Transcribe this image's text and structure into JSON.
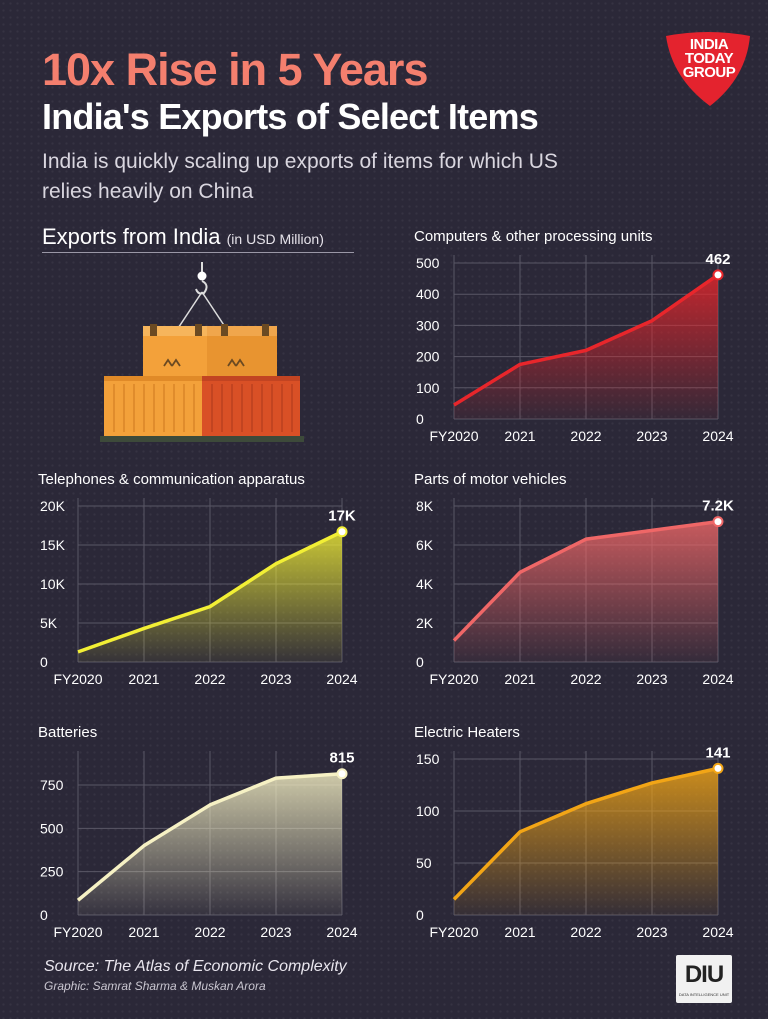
{
  "headline": "10x Rise in 5 Years",
  "title": "India's Exports of Select Items",
  "subtitle": "India is quickly scaling up exports of items for which US relies heavily on China",
  "logo": {
    "line1": "INDIA",
    "line2": "TODAY",
    "line3": "GROUP",
    "color": "#e4232e"
  },
  "section": {
    "label": "Exports from India",
    "unit": "(in USD Million)"
  },
  "source": "Source: The Atlas of Economic Complexity",
  "credit": "Graphic: Samrat Sharma & Muskan Arora",
  "diu": {
    "logo": "DIU",
    "subtitle": "DATA INTELLIGENCE UNIT"
  },
  "chart_data": [
    {
      "type": "area",
      "title": "Computers & other processing units",
      "categories": [
        "FY2020",
        "2021",
        "2022",
        "2023",
        "2024"
      ],
      "values": [
        45,
        175,
        220,
        315,
        462
      ],
      "ylim": [
        0,
        500
      ],
      "yticks": [
        0,
        100,
        200,
        300,
        400,
        500
      ],
      "ytick_labels": [
        "0",
        "100",
        "200",
        "300",
        "400",
        "500"
      ],
      "end_label": "462",
      "color": "#e8262b"
    },
    {
      "type": "area",
      "title": "Telephones & communication apparatus",
      "categories": [
        "FY2020",
        "2021",
        "2022",
        "2023",
        "2024"
      ],
      "values": [
        1300,
        4300,
        7100,
        12600,
        16700
      ],
      "ylim": [
        0,
        20000
      ],
      "yticks": [
        0,
        5000,
        10000,
        15000,
        20000
      ],
      "ytick_labels": [
        "0",
        "5K",
        "10K",
        "15K",
        "20K"
      ],
      "end_label": "17K",
      "color": "#f2ef35"
    },
    {
      "type": "area",
      "title": "Parts of motor vehicles",
      "categories": [
        "FY2020",
        "2021",
        "2022",
        "2023",
        "2024"
      ],
      "values": [
        1100,
        4600,
        6300,
        6750,
        7200
      ],
      "ylim": [
        0,
        8000
      ],
      "yticks": [
        0,
        2000,
        4000,
        6000,
        8000
      ],
      "ytick_labels": [
        "0",
        "2K",
        "4K",
        "6K",
        "8K"
      ],
      "end_label": "7.2K",
      "color": "#ef6767"
    },
    {
      "type": "area",
      "title": "Batteries",
      "categories": [
        "FY2020",
        "2021",
        "2022",
        "2023",
        "2024"
      ],
      "values": [
        85,
        400,
        635,
        790,
        815
      ],
      "ylim": [
        0,
        900
      ],
      "yticks": [
        0,
        250,
        500,
        750
      ],
      "ytick_labels": [
        "0",
        "250",
        "500",
        "750"
      ],
      "end_label": "815",
      "color": "#f6f1c4"
    },
    {
      "type": "area",
      "title": "Electric Heaters",
      "categories": [
        "FY2020",
        "2021",
        "2022",
        "2023",
        "2024"
      ],
      "values": [
        15,
        80,
        107,
        127,
        141
      ],
      "ylim": [
        0,
        150
      ],
      "yticks": [
        0,
        50,
        100,
        150
      ],
      "ytick_labels": [
        "0",
        "50",
        "100",
        "150"
      ],
      "end_label": "141",
      "color": "#f2a516"
    }
  ]
}
